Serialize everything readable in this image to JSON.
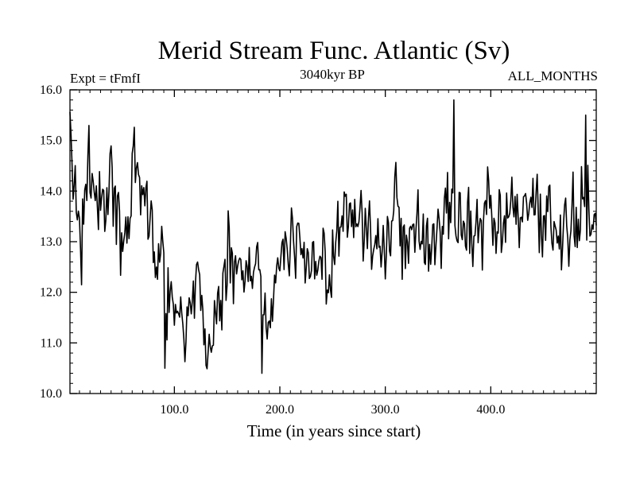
{
  "chart_data": {
    "type": "line",
    "title": "Merid Stream Func. Atlantic (Sv)",
    "subtitle_left": "Expt = tFmfI",
    "subtitle_center": "3040kyr BP",
    "subtitle_right": "ALL_MONTHS",
    "xlabel": "Time (in years since start)",
    "ylabel": "",
    "xlim": [
      1,
      500
    ],
    "ylim": [
      10.0,
      16.0
    ],
    "x_ticks": [
      100,
      200,
      300,
      400
    ],
    "x_tick_labels": [
      "100.0",
      "200.0",
      "300.0",
      "400.0"
    ],
    "y_ticks": [
      10,
      11,
      12,
      13,
      14,
      15,
      16
    ],
    "y_tick_labels": [
      "10.0",
      "11.0",
      "12.0",
      "13.0",
      "14.0",
      "15.0",
      "16.0"
    ],
    "series": [
      {
        "name": "Merid Stream Func. Atlantic",
        "x_start": 1,
        "x_step": 10,
        "values": [
          15.1,
          13.0,
          14.4,
          13.7,
          14.3,
          12.5,
          14.3,
          13.9,
          12.9,
          12.6,
          11.8,
          11.4,
          12.3,
          11.0,
          11.4,
          12.8,
          12.6,
          12.4,
          12.2,
          11.7,
          12.7,
          12.9,
          13.4,
          12.3,
          12.5,
          12.6,
          13.2,
          13.5,
          13.3,
          13.0,
          13.2,
          13.7,
          12.6,
          13.4,
          12.8,
          13.4,
          13.7,
          13.4,
          13.3,
          13.4,
          13.2,
          13.2,
          13.6,
          13.3,
          13.6,
          13.0,
          13.4,
          13.3,
          13.8,
          13.6
        ],
        "noise_amplitude": 1.1,
        "extremes": [
          {
            "x": 91,
            "value": 10.5
          },
          {
            "x": 183,
            "value": 10.4
          },
          {
            "x": 365,
            "value": 15.8
          },
          {
            "x": 490,
            "value": 15.5
          }
        ]
      }
    ]
  }
}
